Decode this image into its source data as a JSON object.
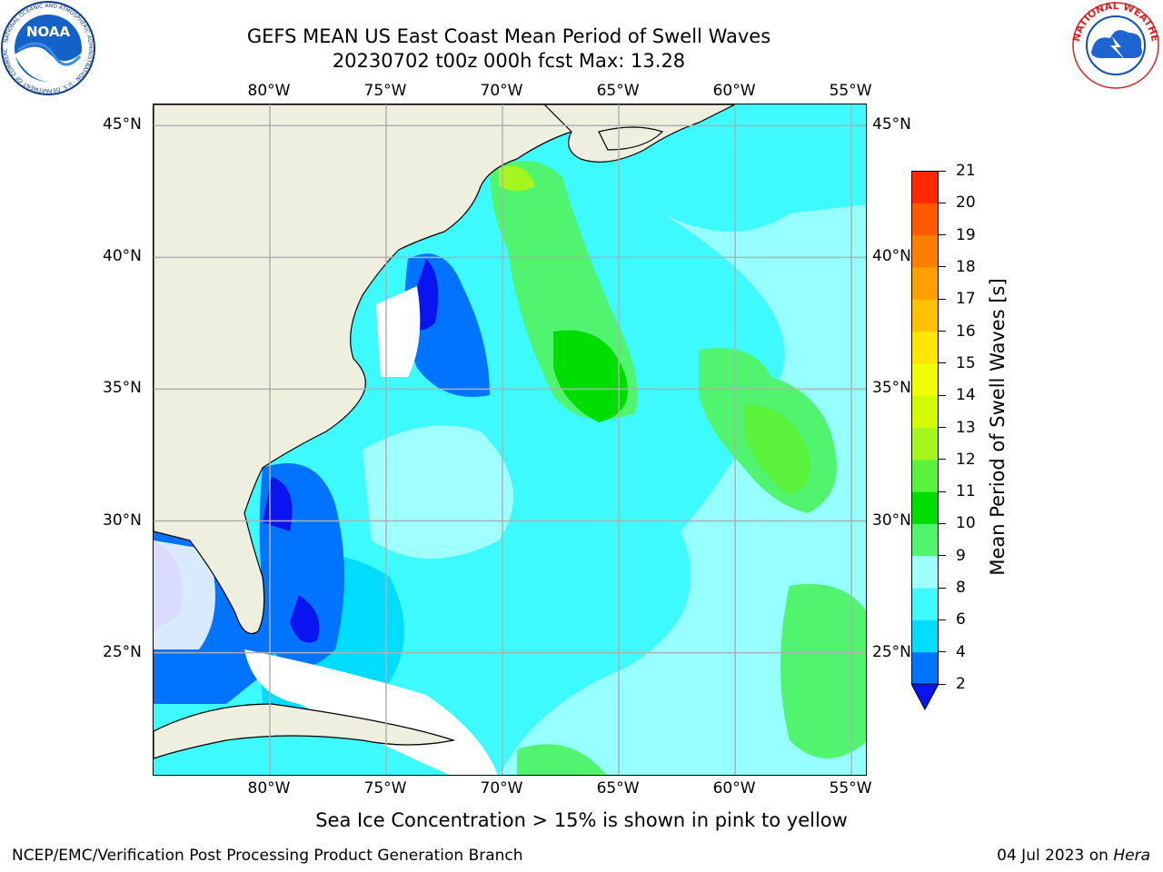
{
  "title": {
    "line1": "GEFS MEAN US East Coast Mean Period of Swell Waves",
    "line2": "20230702 t00z 000h fcst   Max: 13.28"
  },
  "logos": {
    "left": {
      "text": "NOAA",
      "ring": "NATIONAL OCEANIC AND ATMOSPHERIC ADMINISTRATION · U.S. DEPARTMENT OF COMMERCE"
    },
    "right": {
      "text": "NATIONAL WEATHER SERVICE"
    }
  },
  "map": {
    "lon_labels": [
      "80°W",
      "75°W",
      "70°W",
      "65°W",
      "60°W",
      "55°W"
    ],
    "lon_values": [
      -80,
      -75,
      -70,
      -65,
      -60,
      -55
    ],
    "lat_labels": [
      "45°N",
      "40°N",
      "35°N",
      "30°N",
      "25°N"
    ],
    "lat_values": [
      45,
      40,
      35,
      30,
      25
    ],
    "extent": {
      "lon_min": -85,
      "lon_max": -54.3,
      "lat_min": 20.3,
      "lat_max": 45.8
    },
    "grid": true,
    "land_color": "#efefdf",
    "ocean_base_color": "#00ffff"
  },
  "colorbar": {
    "label": "Mean Period of Swell Waves [s]",
    "ticks": [
      "2",
      "4",
      "6",
      "8",
      "9",
      "10",
      "11",
      "12",
      "13",
      "14",
      "15",
      "16",
      "17",
      "18",
      "19",
      "20",
      "21"
    ],
    "colors": [
      "#0073ff",
      "#00ddff",
      "#3dfaff",
      "#a0ffff",
      "#50f46e",
      "#00dd00",
      "#5af23a",
      "#a5f51e",
      "#d4fa00",
      "#f0ff00",
      "#ffe600",
      "#ffc000",
      "#ffa000",
      "#ff8000",
      "#ff5a00",
      "#ff2800",
      "#ff0000"
    ],
    "under_color": "#0a14f0"
  },
  "footnote": "Sea Ice Concentration > 15% is shown in pink to yellow",
  "credit": "NCEP/EMC/Verification Post Processing Product Generation Branch",
  "datestamp": {
    "date": "04 Jul 2023 on ",
    "host": "Hera"
  }
}
